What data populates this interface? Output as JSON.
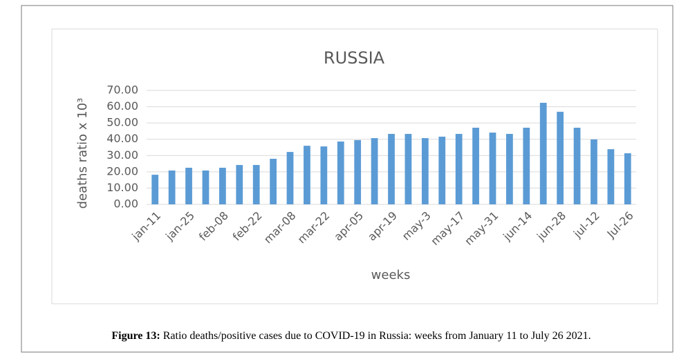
{
  "chart_data": {
    "type": "bar",
    "title": "RUSSIA",
    "x_label": "weeks",
    "y_label": "deaths ratio x 10³",
    "categories": [
      "jan-11",
      null,
      "jan-25",
      null,
      "feb-08",
      null,
      "feb-22",
      null,
      "mar-08",
      null,
      "mar-22",
      null,
      "apr-05",
      null,
      "apr-19",
      null,
      "may-3",
      null,
      "may-17",
      null,
      "may-31",
      null,
      "jun-14",
      null,
      "jun-28",
      null,
      "jul-12",
      null,
      "Jul-26"
    ],
    "values": [
      18.2,
      20.8,
      22.5,
      20.8,
      22.5,
      24.2,
      24.2,
      28.0,
      32.2,
      36.0,
      35.6,
      38.6,
      39.5,
      40.7,
      43.3,
      43.3,
      40.7,
      41.6,
      43.3,
      47.1,
      44.1,
      43.3,
      47.1,
      62.4,
      56.9,
      47.1,
      39.9,
      33.9,
      31.4
    ],
    "color": "#5b9bd5",
    "ylim": [
      0,
      70
    ],
    "yticks": [
      {
        "value": 0,
        "label": "0.00"
      },
      {
        "value": 10,
        "label": "10.00"
      },
      {
        "value": 20,
        "label": "20.00"
      },
      {
        "value": 30,
        "label": "30.00"
      },
      {
        "value": 40,
        "label": "40.00"
      },
      {
        "value": 50,
        "label": "50.00"
      },
      {
        "value": 60,
        "label": "60.00"
      },
      {
        "value": 70,
        "label": "70.00"
      }
    ],
    "grid": true
  },
  "caption": {
    "label": "Figure 13:",
    "text": " Ratio deaths/positive cases due to COVID-19 in Russia: weeks from January 11 to July 26 2021."
  }
}
